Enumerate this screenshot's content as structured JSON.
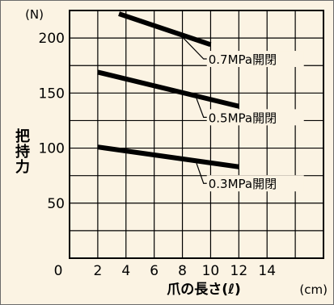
{
  "chart_data": {
    "type": "line",
    "y_unit": "(N)",
    "ylabel": "把持力",
    "x_unit": "(cm)",
    "xlabel": "爪の長さ(ℓ)",
    "ylim": [
      0,
      225
    ],
    "xlim": [
      0,
      18
    ],
    "yticks": [
      50,
      100,
      150,
      200
    ],
    "ytick_labels": [
      "50",
      "100",
      "150",
      "200"
    ],
    "xticks": [
      0,
      2,
      4,
      6,
      8,
      10,
      12,
      14
    ],
    "xtick_labels": [
      "0",
      "2",
      "4",
      "6",
      "8",
      "10",
      "12",
      "14"
    ],
    "grid": true,
    "series": [
      {
        "name": "0.7MPa開閉",
        "x": [
          3.5,
          10
        ],
        "y": [
          222,
          194
        ],
        "label_x": 9.5,
        "label_y": 181
      },
      {
        "name": "0.5MPa開閉",
        "x": [
          2,
          12
        ],
        "y": [
          169,
          138
        ],
        "label_x": 9.5,
        "label_y": 128
      },
      {
        "name": "0.3MPa開閉",
        "x": [
          2,
          12
        ],
        "y": [
          101,
          83
        ],
        "label_x": 9.5,
        "label_y": 68
      }
    ]
  }
}
